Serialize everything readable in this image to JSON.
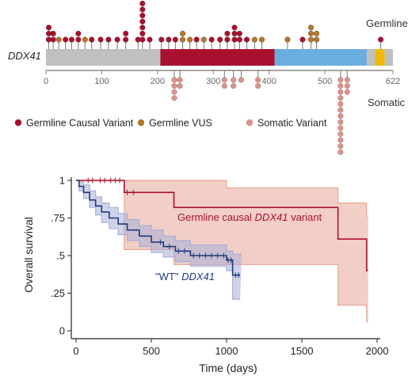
{
  "chart_data": [
    {
      "type": "lollipop",
      "gene": "DDX41",
      "xlim": [
        0,
        622
      ],
      "ticks": [
        0,
        100,
        200,
        300,
        400,
        500,
        622
      ],
      "labels": {
        "germline": "Germline",
        "somatic": "Somatic"
      },
      "domains": [
        {
          "start": 0,
          "end": 205,
          "color": "#c0c0c0"
        },
        {
          "start": 205,
          "end": 410,
          "color": "#a8102f"
        },
        {
          "start": 410,
          "end": 575,
          "color": "#6aaee0"
        },
        {
          "start": 575,
          "end": 590,
          "color": "#c0c0c0"
        },
        {
          "start": 590,
          "end": 607,
          "color": "#f0b800"
        },
        {
          "start": 607,
          "end": 622,
          "color": "#c0c0c0"
        }
      ],
      "legend": [
        {
          "label": "Germline Causal Variant",
          "color": "#a8102f"
        },
        {
          "label": "Germline VUS",
          "color": "#b07a2a"
        },
        {
          "label": "Somatic Variant",
          "color": "#d8948c"
        }
      ],
      "germline_variants": [
        {
          "pos": 5,
          "count": 3,
          "type": "causal"
        },
        {
          "pos": 13,
          "count": 2,
          "type": "causal"
        },
        {
          "pos": 23,
          "count": 1,
          "type": "vus"
        },
        {
          "pos": 35,
          "count": 1,
          "type": "causal"
        },
        {
          "pos": 46,
          "count": 1,
          "type": "causal"
        },
        {
          "pos": 58,
          "count": 2,
          "type": "causal"
        },
        {
          "pos": 70,
          "count": 1,
          "type": "vus"
        },
        {
          "pos": 82,
          "count": 1,
          "type": "causal"
        },
        {
          "pos": 98,
          "count": 1,
          "type": "causal"
        },
        {
          "pos": 112,
          "count": 1,
          "type": "causal"
        },
        {
          "pos": 128,
          "count": 1,
          "type": "causal"
        },
        {
          "pos": 143,
          "count": 2,
          "type": "causal"
        },
        {
          "pos": 165,
          "count": 1,
          "type": "causal"
        },
        {
          "pos": 173,
          "count": 7,
          "type": "causal"
        },
        {
          "pos": 186,
          "count": 1,
          "type": "causal"
        },
        {
          "pos": 207,
          "count": 1,
          "type": "causal"
        },
        {
          "pos": 220,
          "count": 1,
          "type": "causal"
        },
        {
          "pos": 232,
          "count": 1,
          "type": "causal"
        },
        {
          "pos": 245,
          "count": 2,
          "type": "vus"
        },
        {
          "pos": 258,
          "count": 1,
          "type": "vus"
        },
        {
          "pos": 270,
          "count": 1,
          "type": "causal"
        },
        {
          "pos": 283,
          "count": 1,
          "type": "vus"
        },
        {
          "pos": 297,
          "count": 1,
          "type": "causal"
        },
        {
          "pos": 312,
          "count": 1,
          "type": "causal"
        },
        {
          "pos": 325,
          "count": 2,
          "type": "causal"
        },
        {
          "pos": 338,
          "count": 3,
          "type": "causal"
        },
        {
          "pos": 347,
          "count": 2,
          "type": "causal"
        },
        {
          "pos": 360,
          "count": 1,
          "type": "causal"
        },
        {
          "pos": 374,
          "count": 1,
          "type": "vus"
        },
        {
          "pos": 387,
          "count": 1,
          "type": "vus"
        },
        {
          "pos": 433,
          "count": 1,
          "type": "vus"
        },
        {
          "pos": 460,
          "count": 1,
          "type": "causal"
        },
        {
          "pos": 475,
          "count": 3,
          "type": "vus"
        },
        {
          "pos": 485,
          "count": 2,
          "type": "vus"
        },
        {
          "pos": 600,
          "count": 1,
          "type": "causal"
        }
      ],
      "somatic_variants": [
        {
          "pos": 230,
          "count": 4
        },
        {
          "pos": 240,
          "count": 2
        },
        {
          "pos": 320,
          "count": 2
        },
        {
          "pos": 336,
          "count": 2
        },
        {
          "pos": 350,
          "count": 1
        },
        {
          "pos": 380,
          "count": 2
        },
        {
          "pos": 528,
          "count": 13
        },
        {
          "pos": 540,
          "count": 3
        }
      ]
    },
    {
      "type": "line",
      "subtype": "kaplan-meier",
      "xlabel": "Time (days)",
      "ylabel": "Overall survival",
      "xlim": [
        0,
        2000
      ],
      "ylim": [
        0,
        1
      ],
      "xticks": [
        0,
        500,
        1000,
        1500,
        2000
      ],
      "yticks": [
        0,
        0.25,
        0.5,
        0.75,
        1
      ],
      "ytick_labels": [
        "0",
        ".25",
        ".5",
        ".75",
        "1"
      ],
      "series": [
        {
          "name": "Germline causal DDX41 variant",
          "label_parts": [
            {
              "text": "Germline causal ",
              "italic": false
            },
            {
              "text": "DDX41",
              "italic": true
            },
            {
              "text": " variant",
              "italic": false
            }
          ],
          "color": "#a8102f",
          "band_color": "#e8a898",
          "steps": [
            [
              0,
              1.0
            ],
            [
              320,
              0.92
            ],
            [
              650,
              0.82
            ],
            [
              1740,
              0.61
            ],
            [
              1930,
              0.4
            ],
            [
              1940,
              0.4
            ]
          ],
          "ci_upper": [
            [
              0,
              1.0
            ],
            [
              320,
              1.0
            ],
            [
              650,
              1.0
            ],
            [
              1000,
              0.95
            ],
            [
              1400,
              0.95
            ],
            [
              1740,
              0.85
            ],
            [
              1930,
              0.75
            ],
            [
              1940,
              0.75
            ]
          ],
          "ci_lower": [
            [
              0,
              1.0
            ],
            [
              320,
              0.54
            ],
            [
              650,
              0.44
            ],
            [
              1740,
              0.17
            ],
            [
              1930,
              0.06
            ],
            [
              1940,
              0.06
            ]
          ],
          "censor_times": [
            80,
            110,
            160,
            190,
            230,
            260,
            290,
            340,
            380
          ]
        },
        {
          "name": "\"WT\" DDX41",
          "label_parts": [
            {
              "text": "\"WT\" ",
              "italic": false
            },
            {
              "text": "DDX41",
              "italic": true
            }
          ],
          "color": "#1f3a7a",
          "band_color": "#a8aed8",
          "steps": [
            [
              0,
              1.0
            ],
            [
              20,
              0.96
            ],
            [
              50,
              0.92
            ],
            [
              90,
              0.87
            ],
            [
              130,
              0.83
            ],
            [
              170,
              0.79
            ],
            [
              220,
              0.75
            ],
            [
              280,
              0.71
            ],
            [
              340,
              0.67
            ],
            [
              420,
              0.63
            ],
            [
              500,
              0.59
            ],
            [
              580,
              0.56
            ],
            [
              660,
              0.53
            ],
            [
              760,
              0.5
            ],
            [
              1000,
              0.47
            ],
            [
              1040,
              0.37
            ],
            [
              1090,
              0.37
            ]
          ],
          "ci_upper": [
            [
              0,
              1.0
            ],
            [
              20,
              0.99
            ],
            [
              50,
              0.97
            ],
            [
              90,
              0.93
            ],
            [
              130,
              0.89
            ],
            [
              170,
              0.85
            ],
            [
              220,
              0.82
            ],
            [
              280,
              0.78
            ],
            [
              340,
              0.74
            ],
            [
              420,
              0.7
            ],
            [
              500,
              0.67
            ],
            [
              580,
              0.63
            ],
            [
              660,
              0.6
            ],
            [
              760,
              0.57
            ],
            [
              1000,
              0.53
            ],
            [
              1040,
              0.51
            ],
            [
              1100,
              0.51
            ]
          ],
          "ci_lower": [
            [
              0,
              1.0
            ],
            [
              20,
              0.93
            ],
            [
              50,
              0.88
            ],
            [
              90,
              0.82
            ],
            [
              130,
              0.77
            ],
            [
              170,
              0.72
            ],
            [
              220,
              0.68
            ],
            [
              280,
              0.64
            ],
            [
              340,
              0.6
            ],
            [
              420,
              0.56
            ],
            [
              500,
              0.52
            ],
            [
              580,
              0.49
            ],
            [
              660,
              0.46
            ],
            [
              760,
              0.43
            ],
            [
              1000,
              0.4
            ],
            [
              1040,
              0.21
            ],
            [
              1090,
              0.21
            ]
          ],
          "censor_times": [
            560,
            620,
            680,
            720,
            780,
            820,
            860,
            900,
            940,
            980,
            1010,
            1030,
            1060,
            1080
          ]
        }
      ]
    }
  ]
}
